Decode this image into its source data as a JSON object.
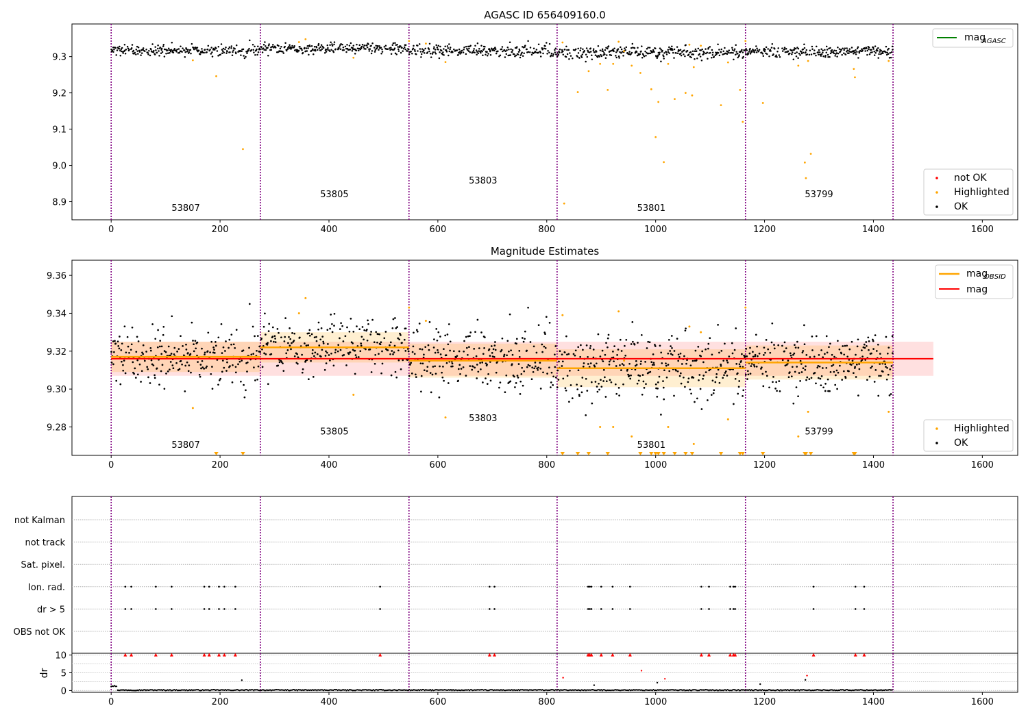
{
  "colors": {
    "ok": "#000000",
    "highlighted": "#ffa500",
    "not_ok": "#ff0000",
    "mag_agasc": "#008000",
    "mag_obsid": "#ffa500",
    "mag": "#ff0000",
    "obs_boundary": "#800080"
  },
  "chart_data": [
    {
      "id": "top",
      "type": "scatter",
      "title": "AGASC ID 656409160.0",
      "xlim": [
        -72,
        1665
      ],
      "ylim": [
        8.85,
        9.39
      ],
      "xticks": [
        0,
        200,
        400,
        600,
        800,
        1000,
        1200,
        1400,
        1600
      ],
      "yticks": [
        8.9,
        9.0,
        9.1,
        9.2,
        9.3
      ],
      "legend_top": {
        "placement": "top-right",
        "entries": [
          {
            "label": "mag",
            "sub": "AGASC",
            "color": "#008000"
          }
        ]
      },
      "legend_bottom": {
        "placement": "bottom-right",
        "entries": [
          {
            "label": "not OK",
            "color": "#ff0000"
          },
          {
            "label": "Highlighted",
            "color": "#ffa500"
          },
          {
            "label": "OK",
            "color": "#000000"
          }
        ]
      },
      "obs_boundaries": [
        0,
        274,
        547,
        819,
        1165,
        1436
      ],
      "obsids": [
        {
          "label": "53807",
          "x": 137,
          "y": 8.875
        },
        {
          "label": "53805",
          "x": 410,
          "y": 8.912
        },
        {
          "label": "53803",
          "x": 683,
          "y": 8.95
        },
        {
          "label": "53801",
          "x": 992,
          "y": 8.875
        },
        {
          "label": "53799",
          "x": 1300,
          "y": 8.912
        }
      ],
      "ok_bands": [
        {
          "x0": 0,
          "x1": 274,
          "mean": 9.317,
          "sd": 0.0075
        },
        {
          "x0": 274,
          "x1": 547,
          "mean": 9.322,
          "sd": 0.0075
        },
        {
          "x0": 547,
          "x1": 819,
          "mean": 9.316,
          "sd": 0.0085
        },
        {
          "x0": 819,
          "x1": 1165,
          "mean": 9.311,
          "sd": 0.0085
        },
        {
          "x0": 1165,
          "x1": 1436,
          "mean": 9.314,
          "sd": 0.0075
        }
      ],
      "highlighted": [
        [
          150,
          9.29
        ],
        [
          193,
          9.246
        ],
        [
          242,
          9.045
        ],
        [
          345,
          9.34
        ],
        [
          357,
          9.348
        ],
        [
          445,
          9.297
        ],
        [
          547,
          9.343
        ],
        [
          578,
          9.336
        ],
        [
          614,
          9.285
        ],
        [
          829,
          9.339
        ],
        [
          832,
          8.895
        ],
        [
          857,
          9.202
        ],
        [
          877,
          9.26
        ],
        [
          898,
          9.28
        ],
        [
          912,
          9.208
        ],
        [
          922,
          9.28
        ],
        [
          932,
          9.341
        ],
        [
          942,
          9.315
        ],
        [
          956,
          9.275
        ],
        [
          972,
          9.255
        ],
        [
          992,
          9.21
        ],
        [
          1000,
          9.078
        ],
        [
          1005,
          9.175
        ],
        [
          1015,
          9.009
        ],
        [
          1023,
          9.28
        ],
        [
          1035,
          9.183
        ],
        [
          1055,
          9.2
        ],
        [
          1062,
          9.333
        ],
        [
          1067,
          9.193
        ],
        [
          1070,
          9.271
        ],
        [
          1083,
          9.33
        ],
        [
          1120,
          9.166
        ],
        [
          1133,
          9.284
        ],
        [
          1155,
          9.208
        ],
        [
          1160,
          9.12
        ],
        [
          1165,
          9.343
        ],
        [
          1197,
          9.172
        ],
        [
          1262,
          9.275
        ],
        [
          1274,
          9.008
        ],
        [
          1276,
          8.965
        ],
        [
          1280,
          9.288
        ],
        [
          1285,
          9.032
        ],
        [
          1364,
          9.266
        ],
        [
          1366,
          9.243
        ],
        [
          1428,
          9.288
        ]
      ]
    },
    {
      "id": "middle",
      "type": "scatter",
      "title": "Magnitude Estimates",
      "xlim": [
        -72,
        1665
      ],
      "ylim": [
        9.265,
        9.368
      ],
      "xticks": [
        0,
        200,
        400,
        600,
        800,
        1000,
        1200,
        1400,
        1600
      ],
      "yticks": [
        9.28,
        9.3,
        9.32,
        9.34,
        9.36
      ],
      "legend_top": {
        "placement": "top-right",
        "entries": [
          {
            "label": "mag",
            "sub": "OBSID",
            "color": "#ffa500"
          },
          {
            "label": "mag",
            "color": "#ff0000"
          }
        ]
      },
      "legend_bottom": {
        "placement": "bottom-right",
        "entries": [
          {
            "label": "Highlighted",
            "color": "#ffa500"
          },
          {
            "label": "OK",
            "color": "#000000"
          }
        ]
      },
      "mag": {
        "value": 9.316,
        "band": [
          9.307,
          9.325
        ],
        "x0": 0,
        "x1": 1510
      },
      "mag_obsid": [
        {
          "x0": 0,
          "x1": 274,
          "value": 9.317,
          "band": [
            9.309,
            9.325
          ]
        },
        {
          "x0": 274,
          "x1": 547,
          "value": 9.322,
          "band": [
            9.314,
            9.33
          ]
        },
        {
          "x0": 547,
          "x1": 819,
          "value": 9.315,
          "band": [
            9.306,
            9.324
          ]
        },
        {
          "x0": 819,
          "x1": 1165,
          "value": 9.311,
          "band": [
            9.301,
            9.321
          ]
        },
        {
          "x0": 1165,
          "x1": 1436,
          "value": 9.314,
          "band": [
            9.305,
            9.323
          ]
        }
      ],
      "obsids": [
        {
          "label": "53807",
          "x": 137,
          "y": 9.269
        },
        {
          "label": "53805",
          "x": 410,
          "y": 9.276
        },
        {
          "label": "53803",
          "x": 683,
          "y": 9.283
        },
        {
          "label": "53801",
          "x": 992,
          "y": 9.269
        },
        {
          "label": "53799",
          "x": 1300,
          "y": 9.276
        }
      ],
      "outside_low": [
        193,
        242,
        829,
        857,
        877,
        912,
        972,
        992,
        1000,
        1005,
        1015,
        1035,
        1055,
        1067,
        1120,
        1155,
        1160,
        1197,
        1274,
        1276,
        1285,
        1364,
        1366
      ]
    },
    {
      "id": "flags",
      "type": "scatter",
      "xlim": [
        -72,
        1665
      ],
      "xticks": [
        0,
        200,
        400,
        600,
        800,
        1000,
        1200,
        1400,
        1600
      ],
      "categories": [
        "not Kalman",
        "not track",
        "Sat. pixel.",
        "Ion. rad.",
        "dr > 5",
        "OBS not OK"
      ],
      "flagged_x": [
        26,
        37,
        82,
        111,
        171,
        180,
        198,
        208,
        228,
        494,
        695,
        704,
        876,
        879,
        882,
        900,
        921,
        953,
        1084,
        1098,
        1137,
        1143,
        1146,
        1290,
        1367,
        1383
      ],
      "dr_extra": [
        [
          240,
          2.9
        ],
        [
          830,
          3.6
        ],
        [
          887,
          1.5
        ],
        [
          974,
          5.6
        ],
        [
          1003,
          2.2
        ],
        [
          1017,
          3.3
        ],
        [
          1192,
          1.8
        ],
        [
          1275,
          3.0
        ],
        [
          1278,
          4.2
        ]
      ]
    },
    {
      "id": "dr",
      "type": "scatter",
      "ylabel": "dr",
      "xlim": [
        -72,
        1665
      ],
      "ylim": [
        -0.5,
        10.5
      ],
      "xticks": [
        0,
        200,
        400,
        600,
        800,
        1000,
        1200,
        1400,
        1600
      ],
      "yticks": [
        0,
        5,
        10
      ]
    }
  ]
}
